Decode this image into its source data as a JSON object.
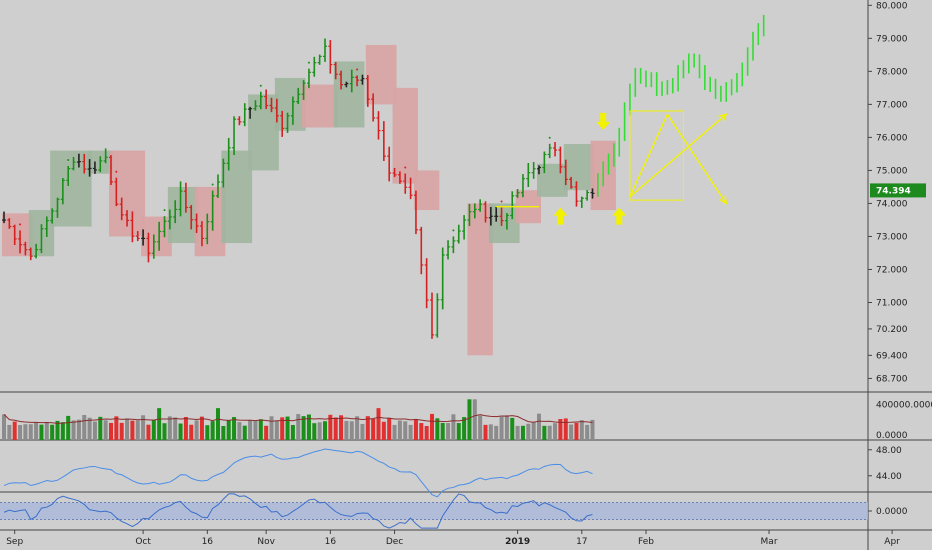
{
  "chart_data": {
    "type": "bar",
    "main": {
      "y_axis_labels": [
        "80.000",
        "79.000",
        "78.000",
        "77.000",
        "76.000",
        "75.000",
        "74.000",
        "73.000",
        "72.000",
        "71.000",
        "70.200",
        "69.400",
        "68.700"
      ],
      "y_axis_values": [
        80.0,
        79.0,
        78.0,
        77.0,
        76.0,
        75.0,
        74.0,
        73.0,
        72.0,
        71.0,
        70.2,
        69.4,
        68.7
      ],
      "last_price_label": "74.394",
      "last_price": 74.394,
      "ylim": [
        68.35,
        80.1
      ],
      "colors": {
        "up": "#1a8f1a",
        "down": "#d42020",
        "neutral": "#222222",
        "projection": "#33dd33",
        "green_box": "#9fb59f",
        "red_box": "#d8a3a3",
        "yellow": "#f2f200",
        "price_tag": "#1c8a1c"
      },
      "bars": {
        "count": 118,
        "start_value": 73.5,
        "waypoints": [
          [
            0,
            73.5
          ],
          [
            5,
            72.4
          ],
          [
            9,
            73.8
          ],
          [
            13,
            75.4
          ],
          [
            16,
            75.0
          ],
          [
            19,
            75.4
          ],
          [
            22,
            73.5
          ],
          [
            27,
            72.6
          ],
          [
            33,
            74.2
          ],
          [
            37,
            73.0
          ],
          [
            43,
            76.4
          ],
          [
            48,
            77.2
          ],
          [
            52,
            76.4
          ],
          [
            56,
            77.8
          ],
          [
            60,
            78.6
          ],
          [
            63,
            77.6
          ],
          [
            67,
            77.8
          ],
          [
            72,
            75.0
          ],
          [
            76,
            74.1
          ],
          [
            80,
            70.0
          ],
          [
            82,
            72.5
          ],
          [
            88,
            73.9
          ],
          [
            93,
            73.5
          ],
          [
            98,
            74.9
          ],
          [
            103,
            75.7
          ],
          [
            107,
            74.0
          ],
          [
            109,
            74.2
          ],
          [
            110,
            74.4
          ]
        ],
        "last_real_index": 110
      },
      "projection_bars": [
        [
          110,
          74.4
        ],
        [
          113,
          75.2
        ],
        [
          118,
          77.8
        ],
        [
          124,
          77.5
        ],
        [
          128,
          78.4
        ],
        [
          133,
          77.3
        ],
        [
          137,
          77.8
        ],
        [
          140,
          79.0
        ],
        [
          142,
          79.5
        ]
      ],
      "boxes": [
        {
          "color": "red",
          "from": 0,
          "to": 5,
          "low": 72.4,
          "high": 73.7
        },
        {
          "color": "green",
          "from": 5,
          "to": 9,
          "low": 72.4,
          "high": 73.8
        },
        {
          "color": "green",
          "from": 9,
          "to": 16,
          "low": 73.3,
          "high": 75.6
        },
        {
          "color": "green",
          "from": 16,
          "to": 20,
          "low": 74.9,
          "high": 75.6
        },
        {
          "color": "red",
          "from": 20,
          "to": 26,
          "low": 73.0,
          "high": 75.6
        },
        {
          "color": "red",
          "from": 26,
          "to": 31,
          "low": 72.4,
          "high": 73.6
        },
        {
          "color": "green",
          "from": 31,
          "to": 36,
          "low": 72.8,
          "high": 74.5
        },
        {
          "color": "red",
          "from": 36,
          "to": 41,
          "low": 72.4,
          "high": 74.5
        },
        {
          "color": "green",
          "from": 41,
          "to": 46,
          "low": 72.8,
          "high": 75.6
        },
        {
          "color": "green",
          "from": 46,
          "to": 51,
          "low": 75.0,
          "high": 77.3
        },
        {
          "color": "green",
          "from": 51,
          "to": 56,
          "low": 76.2,
          "high": 77.8
        },
        {
          "color": "red",
          "from": 56,
          "to": 62,
          "low": 76.3,
          "high": 77.6
        },
        {
          "color": "green",
          "from": 62,
          "to": 67,
          "low": 76.3,
          "high": 78.3
        },
        {
          "color": "red",
          "from": 68,
          "to": 73,
          "low": 77.0,
          "high": 78.8
        },
        {
          "color": "red",
          "from": 73,
          "to": 77,
          "low": 74.6,
          "high": 77.5
        },
        {
          "color": "red",
          "from": 77,
          "to": 81,
          "low": 73.8,
          "high": 75.0
        },
        {
          "color": "red",
          "from": 87,
          "to": 91,
          "low": 69.4,
          "high": 74.0
        },
        {
          "color": "green",
          "from": 91,
          "to": 96,
          "low": 72.8,
          "high": 74.0
        },
        {
          "color": "red",
          "from": 96,
          "to": 100,
          "low": 73.4,
          "high": 74.4
        },
        {
          "color": "green",
          "from": 100,
          "to": 105,
          "low": 74.2,
          "high": 75.2
        },
        {
          "color": "green",
          "from": 105,
          "to": 110,
          "low": 74.4,
          "high": 75.8
        },
        {
          "color": "red",
          "from": 110,
          "to": 114,
          "low": 73.8,
          "high": 75.9
        }
      ],
      "yellow_arrows_up": [
        [
          104,
          73.6
        ],
        [
          115,
          73.6
        ]
      ],
      "yellow_arrows_down": [
        [
          112,
          76.5
        ]
      ],
      "yellow_lines": [
        {
          "from": [
            92,
            73.9
          ],
          "to": [
            100,
            73.9
          ]
        },
        {
          "from": [
            117,
            74.2
          ],
          "to": [
            124,
            76.7
          ],
          "arrow": false
        },
        {
          "from": [
            117,
            74.2
          ],
          "to": [
            135,
            76.7
          ],
          "arrow": true
        },
        {
          "from": [
            124,
            76.7
          ],
          "to": [
            135,
            74.0
          ],
          "arrow": true
        }
      ],
      "yellow_rect": {
        "from": [
          117,
          74.1
        ],
        "to": [
          127,
          76.8
        ]
      }
    },
    "volume": {
      "y_axis_labels": [
        "400000.0000",
        "0.0000"
      ],
      "y_axis_values": [
        400000,
        0
      ],
      "ylim": [
        0,
        520000
      ],
      "base": 200000,
      "amplitude": 140000
    },
    "indicator1": {
      "y_axis_labels": [
        "48.00",
        "44.00"
      ],
      "y_axis_values": [
        48,
        44
      ],
      "ylim": [
        41.5,
        49.5
      ],
      "color": "#4a8ee8"
    },
    "indicator2": {
      "y_axis_labels": [
        "0.0000"
      ],
      "y_axis_values": [
        0
      ],
      "ylim": [
        -1,
        1
      ],
      "color": "#3a6fcc",
      "band_color": "#a9b8d9"
    },
    "x_axis": {
      "labels": [
        "Sep",
        "Oct",
        "16",
        "Nov",
        "16",
        "Dec",
        "2019",
        "17",
        "Feb",
        "Mar",
        "Apr"
      ],
      "positions": [
        2,
        26,
        38,
        49,
        61,
        73,
        96,
        108,
        120,
        143,
        166
      ],
      "bold": [
        "2019"
      ]
    }
  }
}
